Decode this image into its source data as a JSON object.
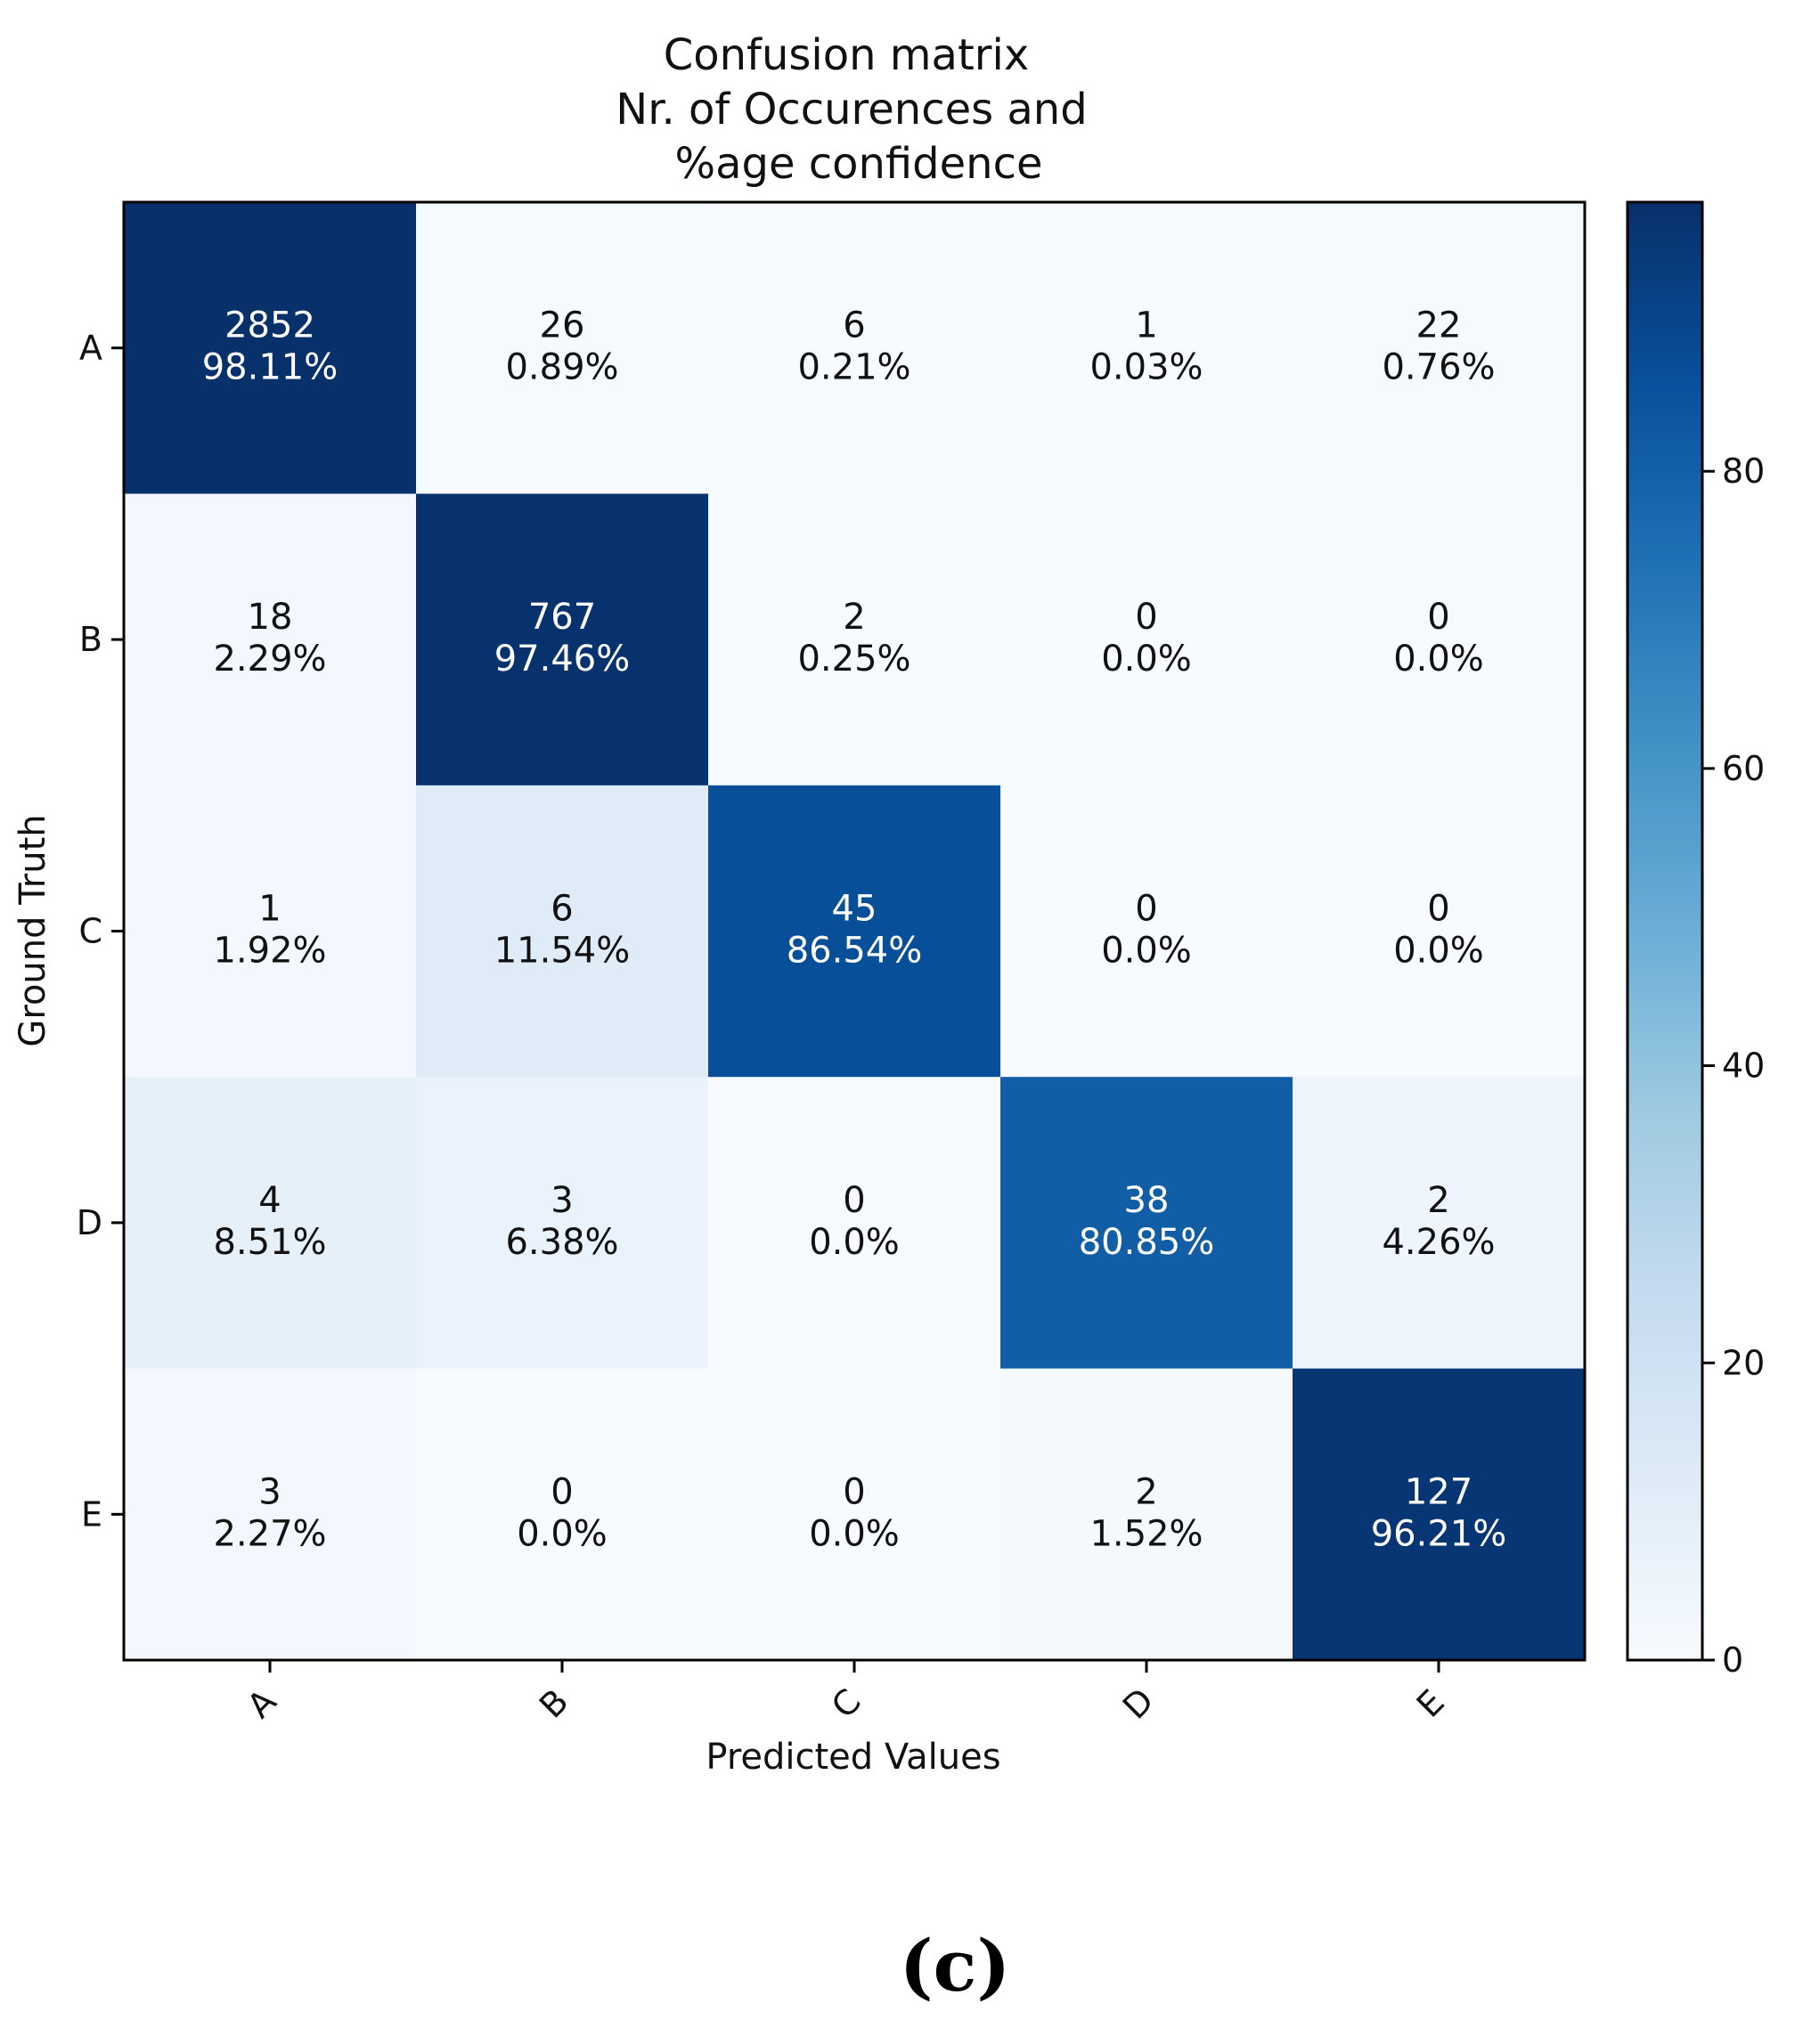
{
  "chart_data": {
    "type": "heatmap",
    "title_lines": [
      "Confusion matrix",
      "Nr. of Occurences and",
      "%age confidence"
    ],
    "xlabel": "Predicted Values",
    "ylabel": "Ground Truth",
    "x_categories": [
      "A",
      "B",
      "C",
      "D",
      "E"
    ],
    "y_categories": [
      "A",
      "B",
      "C",
      "D",
      "E"
    ],
    "counts": [
      [
        2852,
        26,
        6,
        1,
        22
      ],
      [
        18,
        767,
        2,
        0,
        0
      ],
      [
        1,
        6,
        45,
        0,
        0
      ],
      [
        4,
        3,
        0,
        38,
        2
      ],
      [
        3,
        0,
        0,
        2,
        127
      ]
    ],
    "percent_labels": [
      [
        "98.11%",
        "0.89%",
        "0.21%",
        "0.03%",
        "0.76%"
      ],
      [
        "2.29%",
        "97.46%",
        "0.25%",
        "0.0%",
        "0.0%"
      ],
      [
        "1.92%",
        "11.54%",
        "86.54%",
        "0.0%",
        "0.0%"
      ],
      [
        "8.51%",
        "6.38%",
        "0.0%",
        "80.85%",
        "4.26%"
      ],
      [
        "2.27%",
        "0.0%",
        "0.0%",
        "1.52%",
        "96.21%"
      ]
    ],
    "percent_values": [
      [
        98.11,
        0.89,
        0.21,
        0.03,
        0.76
      ],
      [
        2.29,
        97.46,
        0.25,
        0.0,
        0.0
      ],
      [
        1.92,
        11.54,
        86.54,
        0.0,
        0.0
      ],
      [
        8.51,
        6.38,
        0.0,
        80.85,
        4.26
      ],
      [
        2.27,
        0.0,
        0.0,
        1.52,
        96.21
      ]
    ],
    "colorbar": {
      "range": [
        0,
        98.11
      ],
      "ticks": [
        0,
        20,
        40,
        60,
        80
      ],
      "colormap": "Blues"
    }
  },
  "caption": "(c)"
}
